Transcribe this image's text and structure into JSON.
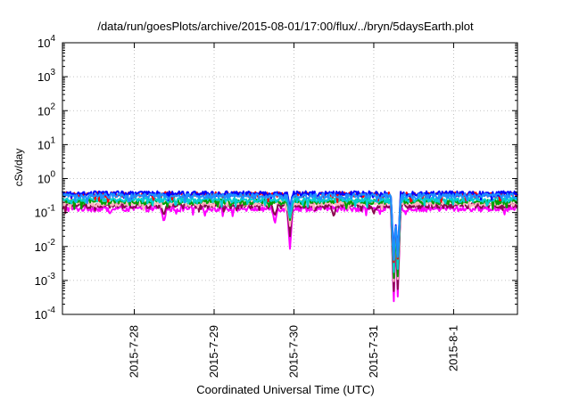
{
  "chart_data": {
    "type": "line",
    "title": "/data/run/goesPlots/archive/2015-08-01/17:00/flux/../bryn/5daysEarth.plot",
    "xlabel": "Coordinated Universal Time (UTC)",
    "ylabel": "cSv/day",
    "x_tick_labels": [
      "2015-7-28",
      "2015-7-29",
      "2015-7-30",
      "2015-7-31",
      "2015-8-1"
    ],
    "x_ticks": [
      27.0,
      28.0,
      29.0,
      30.0,
      31.0
    ],
    "xlim": [
      26.1,
      31.8
    ],
    "y_scale": "log",
    "ylim": [
      0.0001,
      10000
    ],
    "y_ticks": [
      {
        "base": "10",
        "exp": "-4",
        "value": 0.0001
      },
      {
        "base": "10",
        "exp": "-3",
        "value": 0.001
      },
      {
        "base": "10",
        "exp": "-2",
        "value": 0.01
      },
      {
        "base": "10",
        "exp": "-1",
        "value": 0.1
      },
      {
        "base": "10",
        "exp": "0",
        "value": 1
      },
      {
        "base": "10",
        "exp": "1",
        "value": 10
      },
      {
        "base": "10",
        "exp": "2",
        "value": 100
      },
      {
        "base": "10",
        "exp": "3",
        "value": 1000
      },
      {
        "base": "10",
        "exp": "4",
        "value": 10000
      }
    ],
    "grid": true,
    "series": [
      {
        "color": "#ff00ff",
        "base": 0.13,
        "dips": [
          [
            27.37,
            0.05
          ],
          [
            28.76,
            0.045
          ],
          [
            28.95,
            0.0085
          ],
          [
            30.25,
            0.0002
          ],
          [
            30.3,
            0.0003
          ]
        ]
      },
      {
        "color": "#8b0a50",
        "base": 0.16,
        "dips": [
          [
            27.37,
            0.08
          ],
          [
            28.76,
            0.08
          ],
          [
            28.95,
            0.02
          ],
          [
            29.5,
            0.075
          ],
          [
            30.0,
            0.09
          ],
          [
            30.25,
            0.0004
          ],
          [
            30.3,
            0.0005
          ]
        ]
      },
      {
        "color": "#ffb6c1",
        "base": 0.19,
        "dips": [
          [
            28.95,
            0.04
          ],
          [
            30.25,
            0.0008
          ],
          [
            30.3,
            0.001
          ]
        ]
      },
      {
        "color": "#00a000",
        "base": 0.21,
        "dips": [
          [
            28.95,
            0.06
          ],
          [
            30.25,
            0.001
          ],
          [
            30.3,
            0.0012
          ]
        ]
      },
      {
        "color": "#00ced1",
        "base": 0.24,
        "dips": [
          [
            28.95,
            0.07
          ],
          [
            30.25,
            0.0015
          ],
          [
            30.3,
            0.002
          ]
        ]
      },
      {
        "color": "#ff0000",
        "base": 0.34,
        "dips": [
          [
            28.95,
            0.12
          ],
          [
            30.25,
            0.003
          ],
          [
            30.3,
            0.004
          ]
        ]
      },
      {
        "color": "#0000ff",
        "base": 0.36,
        "dips": [
          [
            28.95,
            0.14
          ],
          [
            30.25,
            0.004
          ],
          [
            30.3,
            0.005
          ]
        ]
      },
      {
        "color": "#1e90ff",
        "base": 0.31,
        "dips": [
          [
            28.95,
            0.11
          ],
          [
            30.25,
            0.0035
          ],
          [
            30.3,
            0.0045
          ]
        ]
      }
    ]
  }
}
